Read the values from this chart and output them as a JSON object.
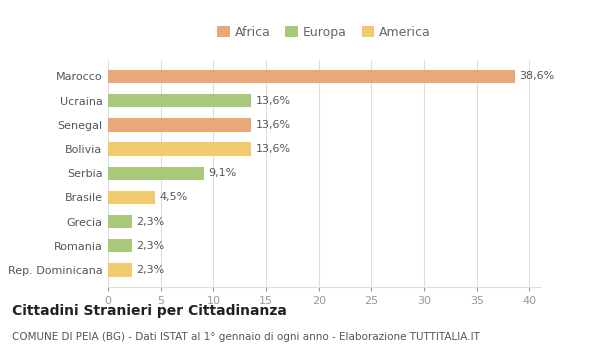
{
  "categories": [
    "Rep. Dominicana",
    "Romania",
    "Grecia",
    "Brasile",
    "Serbia",
    "Bolivia",
    "Senegal",
    "Ucraina",
    "Marocco"
  ],
  "values": [
    2.3,
    2.3,
    2.3,
    4.5,
    9.1,
    13.6,
    13.6,
    13.6,
    38.6
  ],
  "labels": [
    "2,3%",
    "2,3%",
    "2,3%",
    "4,5%",
    "9,1%",
    "13,6%",
    "13,6%",
    "13,6%",
    "38,6%"
  ],
  "colors": [
    "#f2ca6e",
    "#a8c87a",
    "#a8c87a",
    "#f2ca6e",
    "#a8c87a",
    "#f2ca6e",
    "#e8a87a",
    "#a8c87a",
    "#e8a87a"
  ],
  "legend_labels": [
    "Africa",
    "Europa",
    "America"
  ],
  "legend_colors": [
    "#e8a87a",
    "#a8c87a",
    "#f2ca6e"
  ],
  "title": "Cittadini Stranieri per Cittadinanza",
  "subtitle": "COMUNE DI PEIA (BG) - Dati ISTAT al 1° gennaio di ogni anno - Elaborazione TUTTITALIA.IT",
  "xlim": [
    0,
    41
  ],
  "xticks": [
    0,
    5,
    10,
    15,
    20,
    25,
    30,
    35,
    40
  ],
  "background_color": "#ffffff",
  "bar_height": 0.55,
  "grid_color": "#dddddd",
  "label_fontsize": 8,
  "tick_fontsize": 8,
  "title_fontsize": 10,
  "subtitle_fontsize": 7.5
}
